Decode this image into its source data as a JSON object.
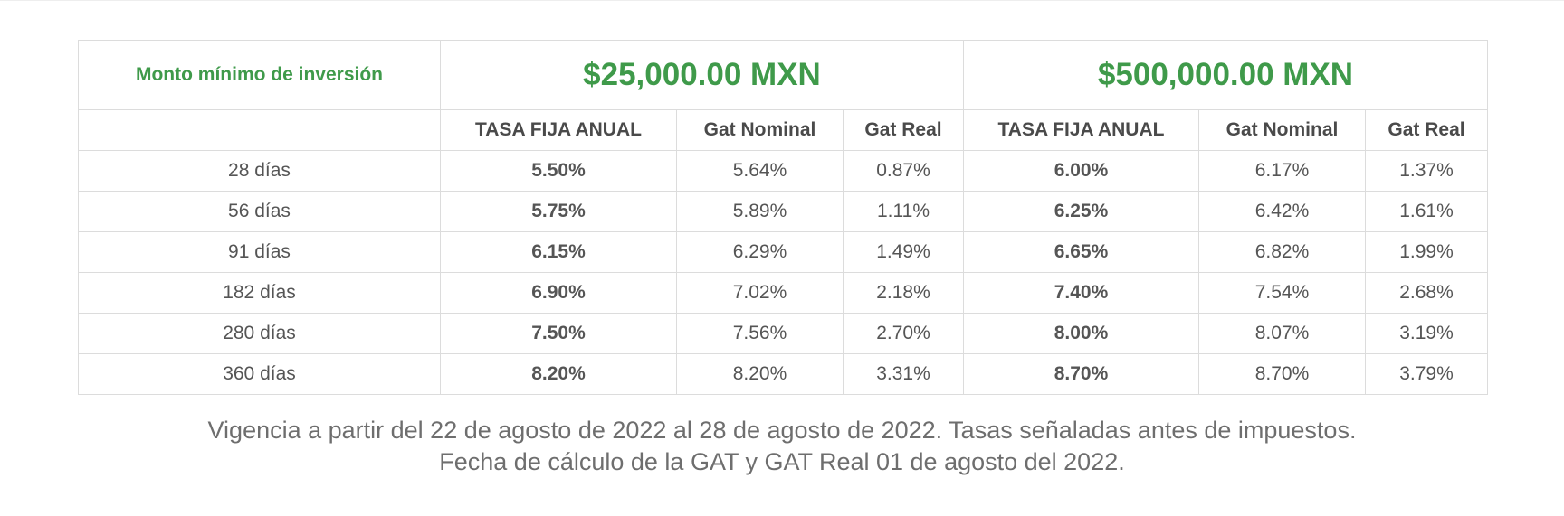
{
  "table": {
    "min_investment_label": "Monto mínimo de inversión",
    "tiers": [
      {
        "amount": "$25,000.00 MXN"
      },
      {
        "amount": "$500,000.00 MXN"
      }
    ],
    "column_headers": [
      "TASA FIJA ANUAL",
      "Gat Nominal",
      "Gat Real",
      "TASA FIJA ANUAL",
      "Gat Nominal",
      "Gat Real"
    ],
    "rows": [
      {
        "term": "28 días",
        "values": [
          "5.50%",
          "5.64%",
          "0.87%",
          "6.00%",
          "6.17%",
          "1.37%"
        ]
      },
      {
        "term": "56 días",
        "values": [
          "5.75%",
          "5.89%",
          "1.11%",
          "6.25%",
          "6.42%",
          "1.61%"
        ]
      },
      {
        "term": "91 días",
        "values": [
          "6.15%",
          "6.29%",
          "1.49%",
          "6.65%",
          "6.82%",
          "1.99%"
        ]
      },
      {
        "term": "182 días",
        "values": [
          "6.90%",
          "7.02%",
          "2.18%",
          "7.40%",
          "7.54%",
          "2.68%"
        ]
      },
      {
        "term": "280 días",
        "values": [
          "7.50%",
          "7.56%",
          "2.70%",
          "8.00%",
          "8.07%",
          "3.19%"
        ]
      },
      {
        "term": "360 días",
        "values": [
          "8.20%",
          "8.20%",
          "3.31%",
          "8.70%",
          "8.70%",
          "3.79%"
        ]
      }
    ]
  },
  "footnote": {
    "line1": "Vigencia a partir del 22 de agosto de 2022 al 28 de agosto de 2022. Tasas señaladas antes de impuestos.",
    "line2": "Fecha de cálculo de la GAT y GAT Real 01 de agosto del 2022."
  },
  "colors": {
    "accent_green": "#3f9a4a",
    "text_gray": "#555555",
    "border": "#dcdcdc"
  }
}
